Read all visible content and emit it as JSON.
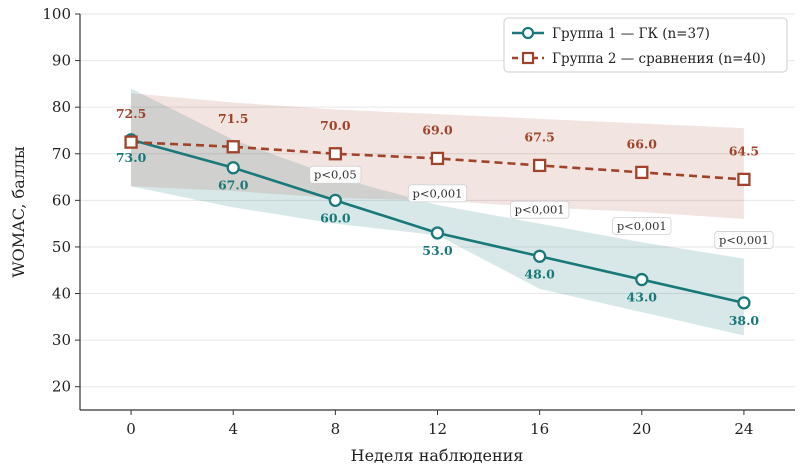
{
  "chart_data": {
    "type": "line",
    "x": [
      0,
      4,
      8,
      12,
      16,
      20,
      24
    ],
    "xlabel": "Неделя наблюдения",
    "ylabel": "WOMAC, баллы",
    "xlim": [
      -2,
      26
    ],
    "ylim": [
      15,
      100
    ],
    "yticks": [
      20,
      30,
      40,
      50,
      60,
      70,
      80,
      90,
      100
    ],
    "grid": "horizontal",
    "legend_position": "top-right",
    "series": [
      {
        "name": "Группа 1 — ГК (n=37)",
        "color": "#19797a",
        "marker": "circle",
        "line_style": "solid",
        "values": [
          73.0,
          67.0,
          60.0,
          53.0,
          48.0,
          43.0,
          38.0
        ],
        "labels": [
          "73.0",
          "67.0",
          "60.0",
          "53.0",
          "48.0",
          "43.0",
          "38.0"
        ],
        "band_lower": [
          63,
          58.5,
          55,
          52.5,
          41,
          36,
          31
        ],
        "band_upper": [
          84,
          73,
          65,
          59,
          55,
          51,
          47.5
        ]
      },
      {
        "name": "Группа 2 — сравнения (n=40)",
        "color": "#a0432a",
        "marker": "square",
        "line_style": "dashed",
        "values": [
          72.5,
          71.5,
          70.0,
          69.0,
          67.5,
          66.0,
          64.5
        ],
        "labels": [
          "72.5",
          "71.5",
          "70.0",
          "69.0",
          "67.5",
          "66.0",
          "64.5"
        ],
        "band_lower": [
          63,
          62,
          60.5,
          60,
          58.5,
          57.5,
          56
        ],
        "band_upper": [
          83,
          81,
          79.5,
          78.5,
          77.5,
          76.5,
          75.5
        ]
      }
    ],
    "annotations": [
      {
        "x": 8,
        "y": 65.5,
        "text": "p<0,05"
      },
      {
        "x": 12,
        "y": 61.5,
        "text": "p<0,001"
      },
      {
        "x": 16,
        "y": 58,
        "text": "p<0,001"
      },
      {
        "x": 20,
        "y": 54.5,
        "text": "p<0,001"
      },
      {
        "x": 24,
        "y": 51.5,
        "text": "p<0,001"
      }
    ]
  }
}
